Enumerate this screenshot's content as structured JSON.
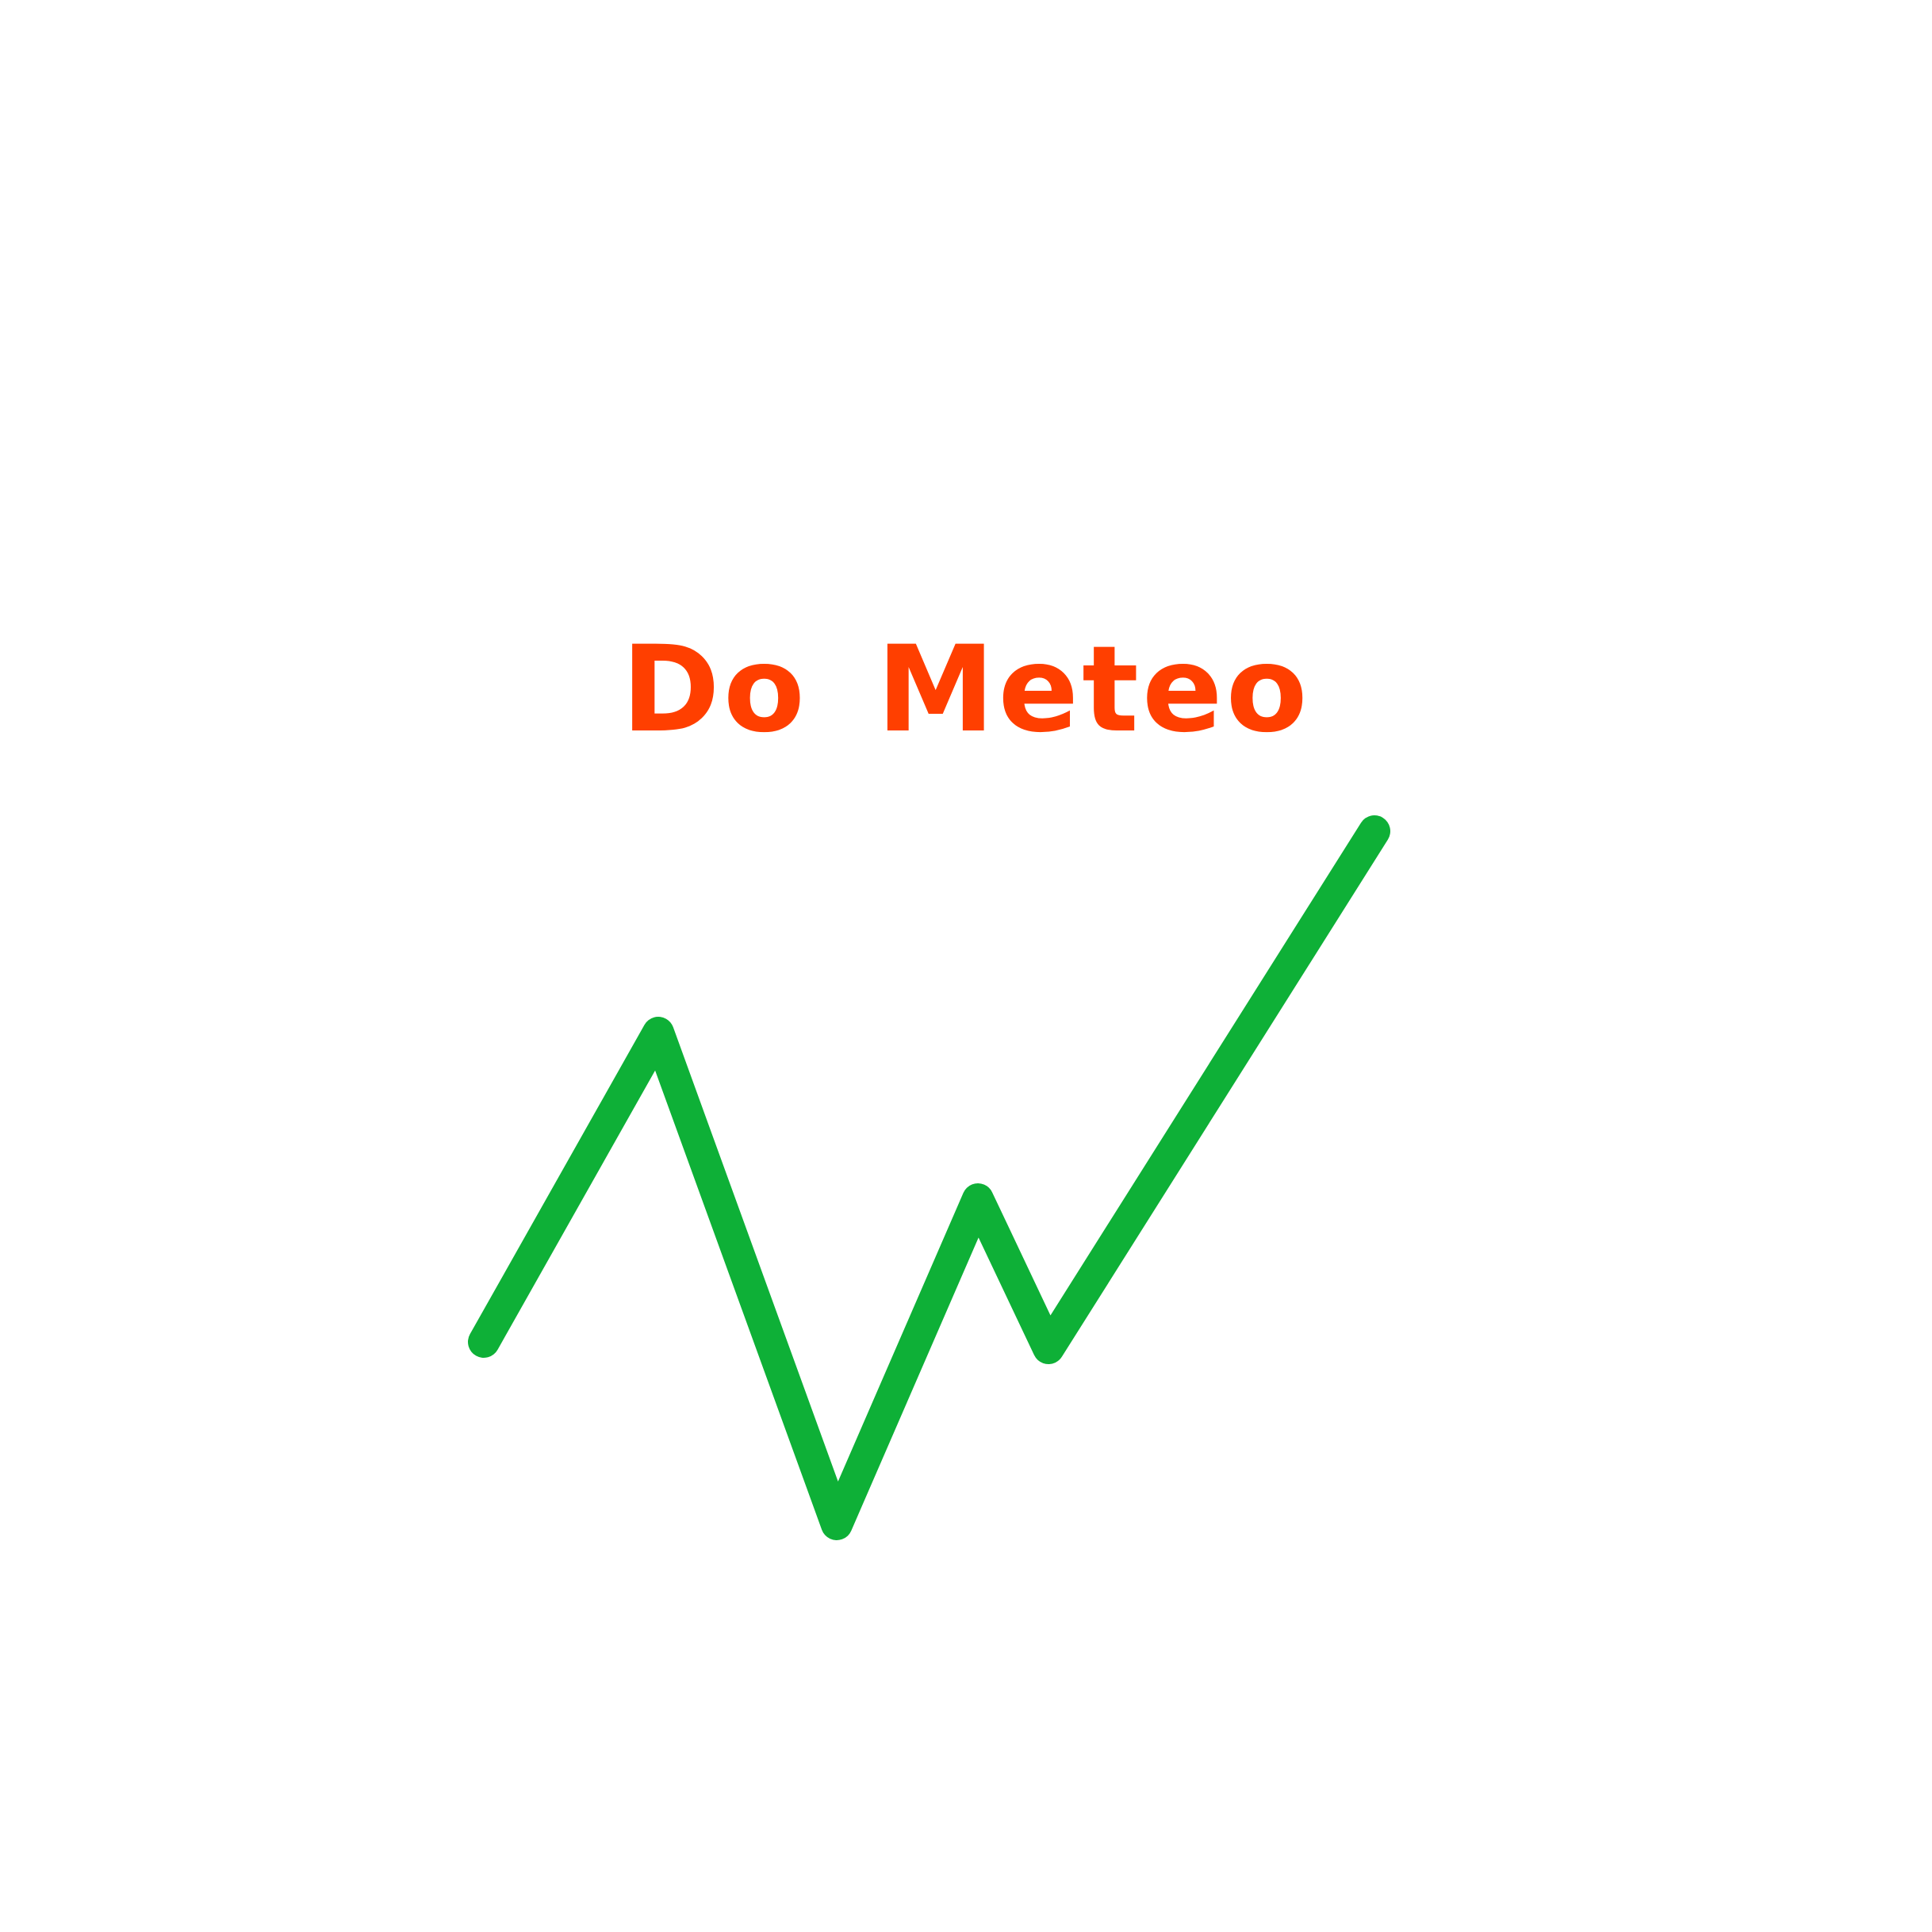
{
  "logo": {
    "text": "Do Meteo",
    "text_color": "#FF3F00",
    "line_color": "#0EB037",
    "line_depiction": "zigzag-line",
    "background_color": "#FFFFFF"
  }
}
